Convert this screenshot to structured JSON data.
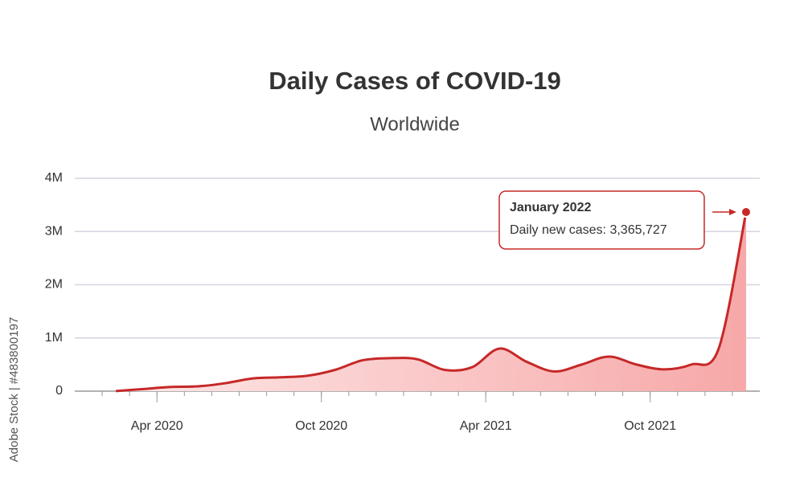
{
  "chart_data": {
    "type": "area",
    "title": "Daily Cases of COVID-19",
    "subtitle": "Worldwide",
    "watermark": "Adobe Stock | #483800197",
    "x": [
      "2020-02",
      "2020-03",
      "2020-04",
      "2020-05",
      "2020-06",
      "2020-07",
      "2020-08",
      "2020-09",
      "2020-10",
      "2020-11",
      "2020-12",
      "2021-01",
      "2021-02",
      "2021-03",
      "2021-04",
      "2021-05",
      "2021-06",
      "2021-07",
      "2021-08",
      "2021-09",
      "2021-10",
      "2021-11",
      "2021-12",
      "2022-01"
    ],
    "series": [
      {
        "name": "Daily new cases",
        "color": "#c62828",
        "values": [
          2000,
          40000,
          80000,
          90000,
          150000,
          240000,
          260000,
          290000,
          400000,
          580000,
          620000,
          600000,
          400000,
          450000,
          800000,
          550000,
          370000,
          500000,
          650000,
          500000,
          410000,
          500000,
          800000,
          3365727
        ]
      }
    ],
    "xlim": [
      "2020-01",
      "2022-02"
    ],
    "xticks": [
      {
        "value": "2020-04",
        "label": "Apr 2020"
      },
      {
        "value": "2020-10",
        "label": "Oct 2020"
      },
      {
        "value": "2021-04",
        "label": "Apr 2021"
      },
      {
        "value": "2021-10",
        "label": "Oct 2021"
      }
    ],
    "ylim": [
      0,
      4000000
    ],
    "yticks": [
      0,
      {
        "value": 1000000,
        "label": "1M"
      },
      {
        "value": 2000000,
        "label": "2M"
      },
      {
        "value": 3000000,
        "label": "3M"
      },
      {
        "value": 4000000,
        "label": "4M"
      }
    ],
    "grid": true,
    "annotation": {
      "index": 23,
      "title": "January 2022",
      "text": "Daily new cases: 3,365,727"
    }
  }
}
